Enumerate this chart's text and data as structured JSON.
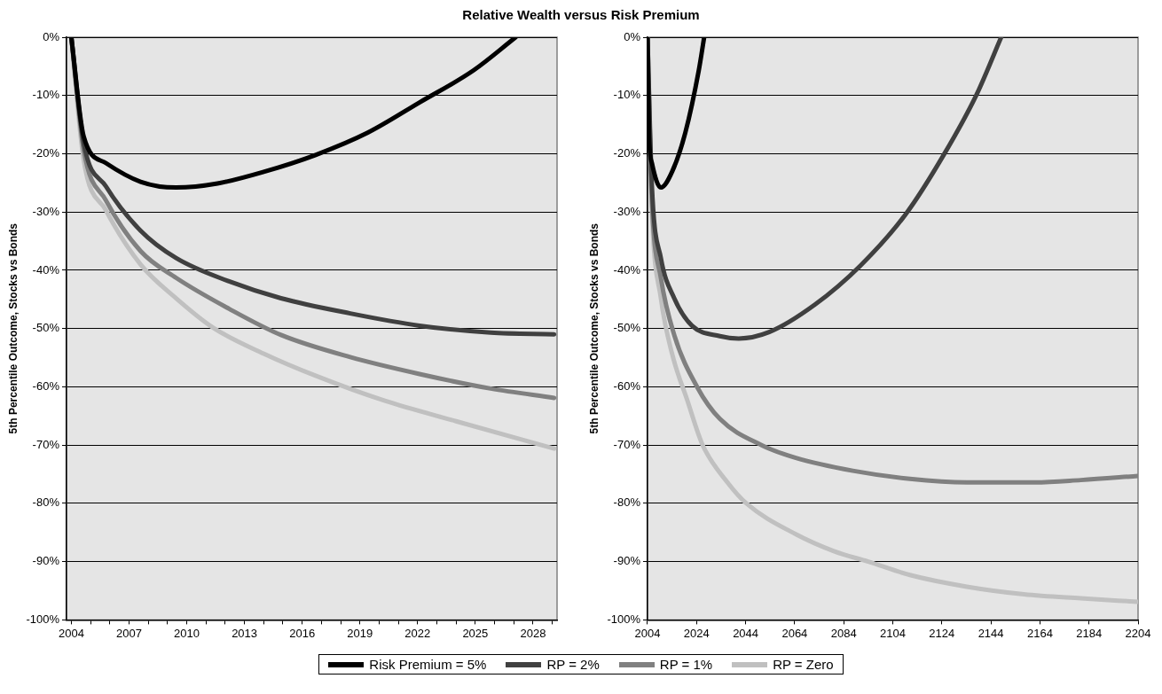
{
  "chart_data": [
    {
      "type": "line",
      "title": "Relative Wealth versus Risk Premium",
      "ylabel": "5th Percentile Outcome, Stocks vs Bonds",
      "legend": "bottom",
      "grid": "y",
      "marker": "none",
      "xlim": [
        2003.75,
        2029.25
      ],
      "xticks": [
        {
          "value": 2004,
          "label": "2004"
        },
        {
          "value": 2005,
          "label": null
        },
        {
          "value": 2006,
          "label": null
        },
        {
          "value": 2007,
          "label": "2007"
        },
        {
          "value": 2008,
          "label": null
        },
        {
          "value": 2009,
          "label": null
        },
        {
          "value": 2010,
          "label": "2010"
        },
        {
          "value": 2011,
          "label": null
        },
        {
          "value": 2012,
          "label": null
        },
        {
          "value": 2013,
          "label": "2013"
        },
        {
          "value": 2014,
          "label": null
        },
        {
          "value": 2015,
          "label": null
        },
        {
          "value": 2016,
          "label": "2016"
        },
        {
          "value": 2017,
          "label": null
        },
        {
          "value": 2018,
          "label": null
        },
        {
          "value": 2019,
          "label": "2019"
        },
        {
          "value": 2020,
          "label": null
        },
        {
          "value": 2021,
          "label": null
        },
        {
          "value": 2022,
          "label": "2022"
        },
        {
          "value": 2023,
          "label": null
        },
        {
          "value": 2024,
          "label": null
        },
        {
          "value": 2025,
          "label": "2025"
        },
        {
          "value": 2026,
          "label": null
        },
        {
          "value": 2027,
          "label": null
        },
        {
          "value": 2028,
          "label": "2028"
        },
        {
          "value": 2029,
          "label": null
        }
      ],
      "ylim": [
        -100,
        0
      ],
      "yticks": [
        {
          "value": 0,
          "label": "0%"
        },
        {
          "value": -10,
          "label": "-10%"
        },
        {
          "value": -20,
          "label": "-20%"
        },
        {
          "value": -30,
          "label": "-30%"
        },
        {
          "value": -40,
          "label": "-40%"
        },
        {
          "value": -50,
          "label": "-50%"
        },
        {
          "value": -60,
          "label": "-60%"
        },
        {
          "value": -70,
          "label": "-70%"
        },
        {
          "value": -80,
          "label": "-80%"
        },
        {
          "value": -90,
          "label": "-90%"
        },
        {
          "value": -100,
          "label": "-100%"
        }
      ],
      "series": [
        {
          "name": "Risk Premium = 5%",
          "color": "#000000",
          "x": [
            2004,
            2004.64,
            2005.8,
            2007.6,
            2009.45,
            2011.6,
            2014.0,
            2016.7,
            2019.4,
            2022.1,
            2024.9,
            2027.1
          ],
          "values": [
            0,
            -17.0,
            -21.6,
            -24.8,
            -25.8,
            -25.1,
            -23.1,
            -20.2,
            -16.4,
            -11.2,
            -5.7,
            0
          ]
        },
        {
          "name": "RP = 2%",
          "color": "#404040",
          "x": [
            2004,
            2004.64,
            2005.8,
            2007.6,
            2009.45,
            2012.2,
            2014.9,
            2018.5,
            2022.1,
            2025.8,
            2029.1
          ],
          "values": [
            0,
            -18.1,
            -25.6,
            -33.2,
            -37.9,
            -41.9,
            -44.8,
            -47.4,
            -49.5,
            -50.7,
            -51.0
          ]
        },
        {
          "name": "RP = 1%",
          "color": "#808080",
          "x": [
            2004,
            2004.64,
            2005.8,
            2007.6,
            2009.45,
            2012.2,
            2014.9,
            2018.5,
            2022.1,
            2025.8,
            2029.1
          ],
          "values": [
            0,
            -19.3,
            -28.0,
            -36.7,
            -41.3,
            -46.6,
            -51.1,
            -54.9,
            -57.8,
            -60.3,
            -61.9
          ]
        },
        {
          "name": "RP = Zero",
          "color": "#c0c0c0",
          "x": [
            2004,
            2004.64,
            2005.8,
            2007.6,
            2009.45,
            2011.4,
            2014.0,
            2016.7,
            2020.3,
            2024.0,
            2029.1
          ],
          "values": [
            0,
            -21.0,
            -29.7,
            -39.0,
            -44.8,
            -49.9,
            -54.3,
            -58.1,
            -62.4,
            -65.9,
            -70.6
          ]
        }
      ]
    },
    {
      "type": "line",
      "ylabel": "5th Percentile Outcome, Stocks vs Bonds",
      "grid": "y",
      "marker": "none",
      "xlim": [
        2004,
        2204
      ],
      "xticks": [
        2004,
        2024,
        2044,
        2064,
        2084,
        2104,
        2124,
        2144,
        2164,
        2184,
        2204
      ],
      "ylim": [
        -100,
        0
      ],
      "yticks": [
        {
          "value": 0,
          "label": "0%"
        },
        {
          "value": -10,
          "label": "-10%"
        },
        {
          "value": -20,
          "label": "-20%"
        },
        {
          "value": -30,
          "label": "-30%"
        },
        {
          "value": -40,
          "label": "-40%"
        },
        {
          "value": -50,
          "label": "-50%"
        },
        {
          "value": -60,
          "label": "-60%"
        },
        {
          "value": -70,
          "label": "-70%"
        },
        {
          "value": -80,
          "label": "-80%"
        },
        {
          "value": -90,
          "label": "-90%"
        },
        {
          "value": -100,
          "label": "-100%"
        }
      ],
      "series": [
        {
          "color": "#000000",
          "x": [
            2004,
            2004.64,
            2005.8,
            2009.45,
            2014.0,
            2019.4,
            2024.9,
            2027.1
          ],
          "values": [
            0,
            -17.0,
            -21.6,
            -25.8,
            -23.1,
            -16.4,
            -5.7,
            0
          ]
        },
        {
          "color": "#404040",
          "x": [
            2004,
            2005.8,
            2009.45,
            2014.9,
            2022.1,
            2033.5,
            2041.2,
            2053.6,
            2072.2,
            2090.8,
            2109.4,
            2124.9,
            2138.1,
            2148.2
          ],
          "values": [
            0,
            -25.6,
            -37.9,
            -44.8,
            -49.5,
            -51.3,
            -51.7,
            -50.6,
            -45.9,
            -39.2,
            -30.3,
            -20.1,
            -9.9,
            0
          ]
        },
        {
          "color": "#808080",
          "x": [
            2004,
            2005.8,
            2009.45,
            2014.9,
            2024.2,
            2033.5,
            2050.5,
            2064.5,
            2087.7,
            2111,
            2134.2,
            2162.1,
            2180.7,
            2204
          ],
          "values": [
            0,
            -28.0,
            -41.3,
            -51.1,
            -60.0,
            -65.5,
            -70.0,
            -72.2,
            -74.4,
            -75.8,
            -76.4,
            -76.4,
            -76.0,
            -75.3
          ]
        },
        {
          "color": "#c0c0c0",
          "x": [
            2004,
            2005.8,
            2009.45,
            2014.0,
            2020.3,
            2026.5,
            2036.6,
            2044.3,
            2064.5,
            2080,
            2094,
            2111,
            2134.2,
            2157.5,
            2180.7,
            2204
          ],
          "values": [
            0,
            -29.7,
            -44.8,
            -54.3,
            -62.4,
            -70.0,
            -76.4,
            -80.0,
            -85.3,
            -88.2,
            -90.0,
            -92.3,
            -94.3,
            -95.6,
            -96.3,
            -96.9
          ]
        }
      ]
    }
  ]
}
